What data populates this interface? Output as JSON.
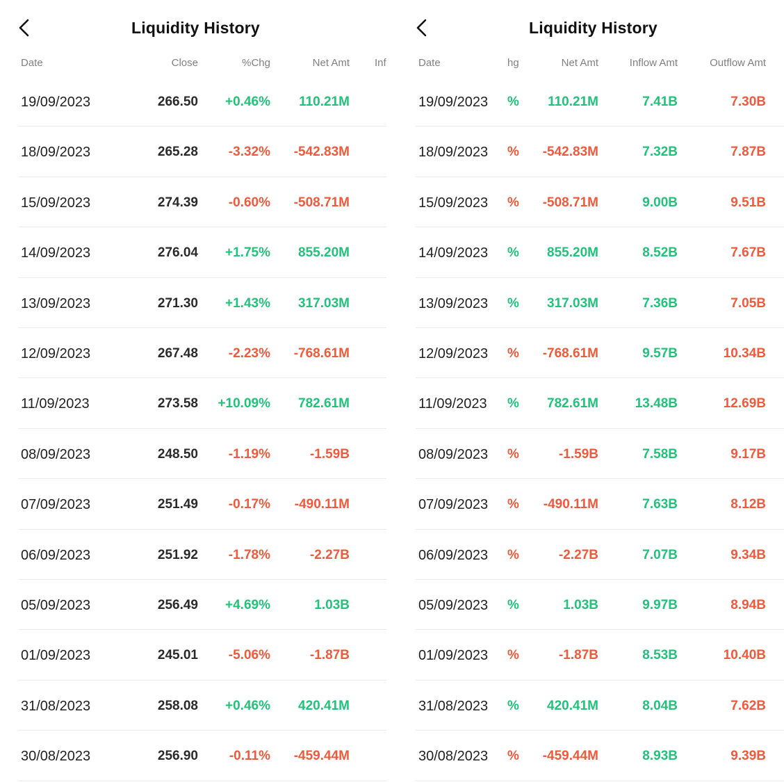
{
  "title": "Liquidity History",
  "colors": {
    "up": "#22c27b",
    "down": "#ef5a3c"
  },
  "left_columns": {
    "date": "Date",
    "close": "Close",
    "chg": "%Chg",
    "net": "Net Amt",
    "inflow_cut": "Inf"
  },
  "right_columns": {
    "date": "Date",
    "chg_cut": "hg",
    "net": "Net Amt",
    "inflow": "Inflow Amt",
    "outflow": "Outflow Amt"
  },
  "rows": [
    {
      "date": "19/09/2023",
      "close": "266.50",
      "chg": "+0.46%",
      "net": "110.21M",
      "inflow": "7.41B",
      "outflow": "7.30B",
      "dir": "up"
    },
    {
      "date": "18/09/2023",
      "close": "265.28",
      "chg": "-3.32%",
      "net": "-542.83M",
      "inflow": "7.32B",
      "outflow": "7.87B",
      "dir": "down"
    },
    {
      "date": "15/09/2023",
      "close": "274.39",
      "chg": "-0.60%",
      "net": "-508.71M",
      "inflow": "9.00B",
      "outflow": "9.51B",
      "dir": "down"
    },
    {
      "date": "14/09/2023",
      "close": "276.04",
      "chg": "+1.75%",
      "net": "855.20M",
      "inflow": "8.52B",
      "outflow": "7.67B",
      "dir": "up"
    },
    {
      "date": "13/09/2023",
      "close": "271.30",
      "chg": "+1.43%",
      "net": "317.03M",
      "inflow": "7.36B",
      "outflow": "7.05B",
      "dir": "up"
    },
    {
      "date": "12/09/2023",
      "close": "267.48",
      "chg": "-2.23%",
      "net": "-768.61M",
      "inflow": "9.57B",
      "outflow": "10.34B",
      "dir": "down"
    },
    {
      "date": "11/09/2023",
      "close": "273.58",
      "chg": "+10.09%",
      "net": "782.61M",
      "inflow": "13.48B",
      "outflow": "12.69B",
      "dir": "up"
    },
    {
      "date": "08/09/2023",
      "close": "248.50",
      "chg": "-1.19%",
      "net": "-1.59B",
      "inflow": "7.58B",
      "outflow": "9.17B",
      "dir": "down"
    },
    {
      "date": "07/09/2023",
      "close": "251.49",
      "chg": "-0.17%",
      "net": "-490.11M",
      "inflow": "7.63B",
      "outflow": "8.12B",
      "dir": "down"
    },
    {
      "date": "06/09/2023",
      "close": "251.92",
      "chg": "-1.78%",
      "net": "-2.27B",
      "inflow": "7.07B",
      "outflow": "9.34B",
      "dir": "down"
    },
    {
      "date": "05/09/2023",
      "close": "256.49",
      "chg": "+4.69%",
      "net": "1.03B",
      "inflow": "9.97B",
      "outflow": "8.94B",
      "dir": "up"
    },
    {
      "date": "01/09/2023",
      "close": "245.01",
      "chg": "-5.06%",
      "net": "-1.87B",
      "inflow": "8.53B",
      "outflow": "10.40B",
      "dir": "down"
    },
    {
      "date": "31/08/2023",
      "close": "258.08",
      "chg": "+0.46%",
      "net": "420.41M",
      "inflow": "8.04B",
      "outflow": "7.62B",
      "dir": "up"
    },
    {
      "date": "30/08/2023",
      "close": "256.90",
      "chg": "-0.11%",
      "net": "-459.44M",
      "inflow": "8.93B",
      "outflow": "9.39B",
      "dir": "down"
    }
  ],
  "right_chg_glyph": "%"
}
